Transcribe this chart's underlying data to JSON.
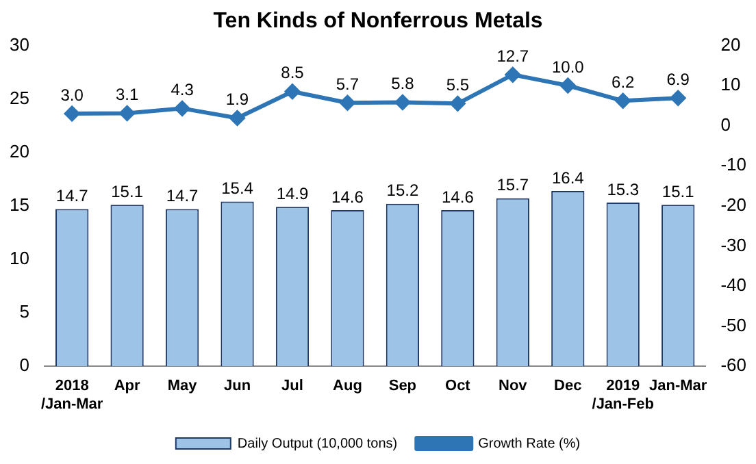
{
  "chart_data": {
    "type": "bar",
    "title": "Ten Kinds of Nonferrous Metals",
    "categories": [
      "2018\n/Jan-Mar",
      "Apr",
      "May",
      "Jun",
      "Jul",
      "Aug",
      "Sep",
      "Oct",
      "Nov",
      "Dec",
      "2019\n/Jan-Feb",
      "Jan-Mar"
    ],
    "series": [
      {
        "name": "Daily Output (10,000 tons)",
        "color": "#9dc3e6",
        "values": [
          14.7,
          15.1,
          14.7,
          15.4,
          14.9,
          14.6,
          15.2,
          14.6,
          15.7,
          16.4,
          15.3,
          15.1
        ]
      },
      {
        "name": "Growth Rate (%)",
        "type": "line",
        "axis": "y2",
        "color": "#2e75b6",
        "marker": "diamond",
        "values": [
          3.0,
          3.1,
          4.3,
          1.9,
          8.5,
          5.7,
          5.8,
          5.5,
          12.7,
          10.0,
          6.2,
          6.9
        ],
        "value_labels": [
          "3.0",
          "3.1",
          "4.3",
          "1.9",
          "8.5",
          "5.7",
          "5.8",
          "5.5",
          "12.7",
          "10.0",
          "6.2",
          "6.9"
        ]
      }
    ],
    "ylim": [
      0,
      30
    ],
    "yticks": [
      0,
      5,
      10,
      15,
      20,
      25,
      30
    ],
    "y2lim": [
      -60,
      20
    ],
    "y2ticks": [
      -60,
      -50,
      -40,
      -30,
      -20,
      -10,
      0,
      10,
      20
    ],
    "grid": false,
    "legend": "bottom",
    "data_labels": true
  }
}
